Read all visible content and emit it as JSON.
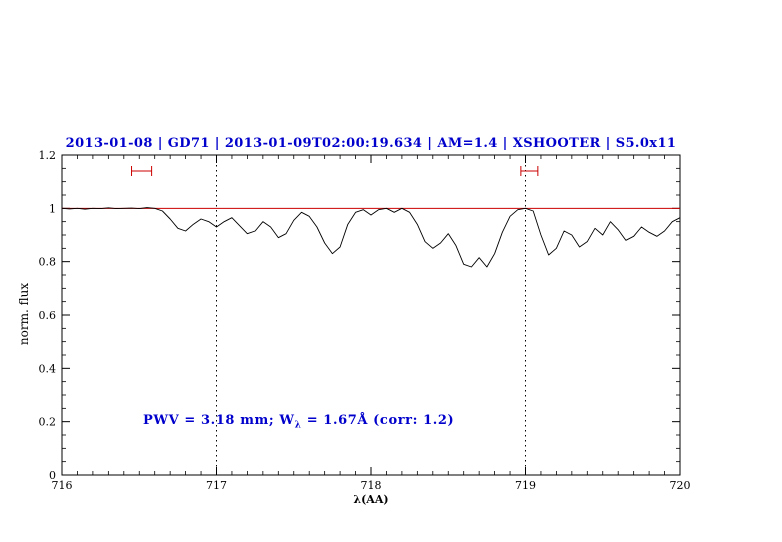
{
  "figure": {
    "background": "#ffffff"
  },
  "chart_data": {
    "type": "line",
    "title": "2013-01-08 | GD71 | 2013-01-09T02:00:19.634 | AM=1.4 | XSHOOTER | S5.0x11",
    "title_color": "#0000cc",
    "xlabel": "λ(AA)",
    "ylabel": "norm. flux",
    "xlim": [
      716,
      720
    ],
    "ylim": [
      0,
      1.2
    ],
    "x_ticks": [
      716,
      717,
      718,
      719,
      720
    ],
    "x_tick_labels": [
      "716",
      "717",
      "718",
      "719",
      "720"
    ],
    "y_ticks": [
      0,
      0.2,
      0.4,
      0.6,
      0.8,
      1,
      1.2
    ],
    "y_tick_labels": [
      "0",
      "0.2",
      "0.4",
      "0.6",
      "0.8",
      "1",
      "1.2"
    ],
    "x_minor_step": 0.1,
    "y_minor_step": 0.05,
    "grid": false,
    "line_color": "#000000",
    "series": [
      {
        "name": "observed-spectrum",
        "color": "#000000",
        "x": [
          716.0,
          716.05,
          716.1,
          716.15,
          716.2,
          716.25,
          716.3,
          716.35,
          716.4,
          716.45,
          716.5,
          716.55,
          716.6,
          716.65,
          716.7,
          716.75,
          716.8,
          716.85,
          716.9,
          716.95,
          717.0,
          717.05,
          717.1,
          717.15,
          717.2,
          717.25,
          717.3,
          717.35,
          717.4,
          717.45,
          717.5,
          717.55,
          717.6,
          717.65,
          717.7,
          717.75,
          717.8,
          717.85,
          717.9,
          717.95,
          718.0,
          718.05,
          718.1,
          718.15,
          718.2,
          718.25,
          718.3,
          718.35,
          718.4,
          718.45,
          718.5,
          718.55,
          718.6,
          718.65,
          718.7,
          718.75,
          718.8,
          718.85,
          718.9,
          718.95,
          719.0,
          719.05,
          719.1,
          719.15,
          719.2,
          719.25,
          719.3,
          719.35,
          719.4,
          719.45,
          719.5,
          719.55,
          719.6,
          719.65,
          719.7,
          719.75,
          719.8,
          719.85,
          719.9,
          719.95,
          720.0
        ],
        "y": [
          1.0,
          0.998,
          1.0,
          0.997,
          1.0,
          0.999,
          1.002,
          0.999,
          1.0,
          1.001,
          0.999,
          1.003,
          1.0,
          0.99,
          0.96,
          0.925,
          0.915,
          0.94,
          0.96,
          0.95,
          0.93,
          0.95,
          0.965,
          0.935,
          0.905,
          0.915,
          0.95,
          0.93,
          0.89,
          0.905,
          0.955,
          0.985,
          0.97,
          0.93,
          0.87,
          0.83,
          0.855,
          0.94,
          0.985,
          0.995,
          0.975,
          0.995,
          1.0,
          0.985,
          1.0,
          0.985,
          0.94,
          0.875,
          0.85,
          0.87,
          0.905,
          0.86,
          0.79,
          0.78,
          0.815,
          0.78,
          0.83,
          0.91,
          0.97,
          0.995,
          1.0,
          0.99,
          0.9,
          0.825,
          0.85,
          0.915,
          0.9,
          0.855,
          0.875,
          0.925,
          0.9,
          0.95,
          0.92,
          0.88,
          0.895,
          0.93,
          0.91,
          0.895,
          0.915,
          0.95,
          0.965
        ]
      }
    ],
    "reference_lines": [
      {
        "type": "horizontal",
        "y": 1.0,
        "color": "#cc0000",
        "style": "solid",
        "name": "continuum-line"
      },
      {
        "type": "vertical",
        "x": 717,
        "color": "#000000",
        "style": "dotted",
        "name": "fit-range-line-717"
      },
      {
        "type": "vertical",
        "x": 719,
        "color": "#000000",
        "style": "dotted",
        "name": "fit-range-line-719"
      }
    ],
    "interval_markers": [
      {
        "x1": 716.45,
        "x2": 716.58,
        "y": 1.14,
        "color": "#cc0000",
        "name": "line-interval-marker-1"
      },
      {
        "x1": 718.97,
        "x2": 719.08,
        "y": 1.14,
        "color": "#cc0000",
        "name": "line-interval-marker-2"
      }
    ],
    "annotation": {
      "prefix": "PWV = 3.18 mm; W",
      "sub": "λ",
      "suffix": " = 1.67Å (corr: 1.2)",
      "x": 716.55,
      "y": 0.2,
      "color": "#0000cc"
    }
  }
}
